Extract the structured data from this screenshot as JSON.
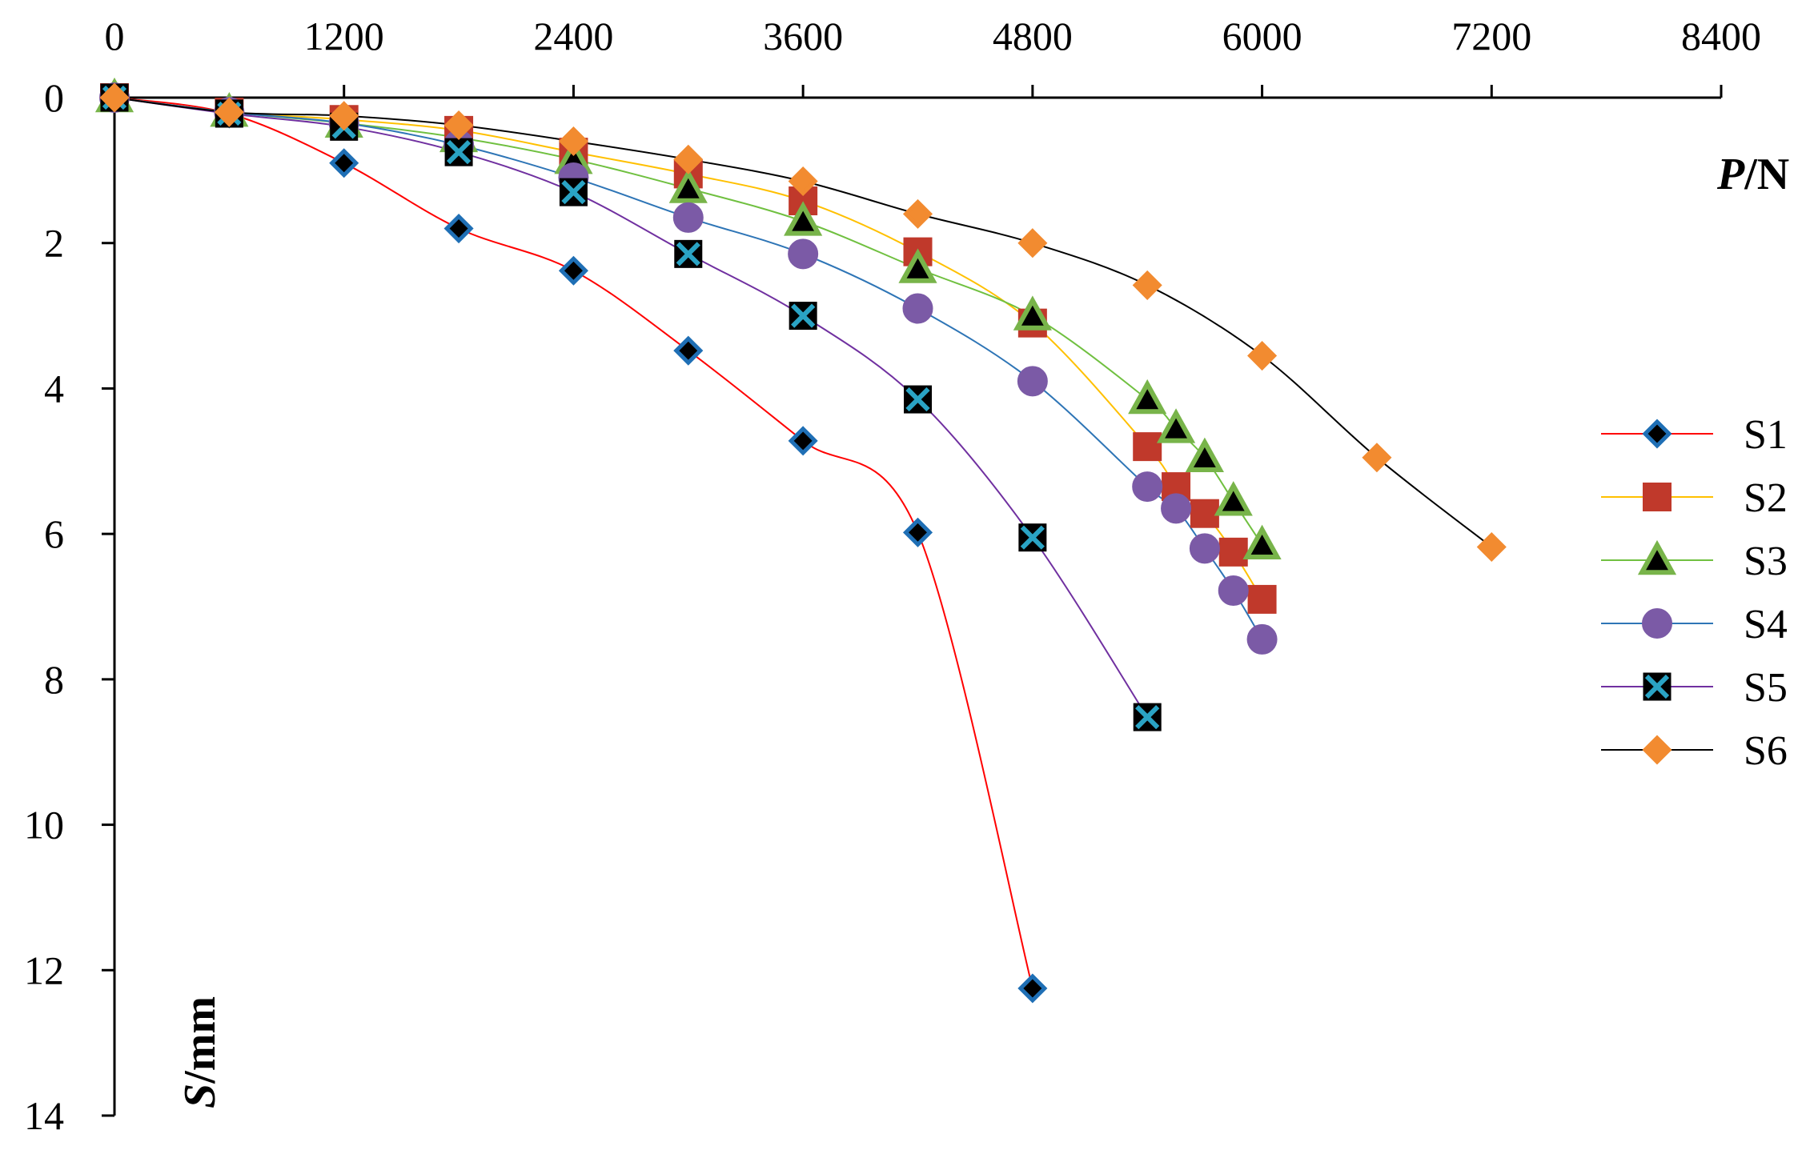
{
  "chart_data": {
    "type": "line",
    "title": "",
    "xlabel": {
      "italic": "P",
      "rest": "/N"
    },
    "ylabel": {
      "italic": "S",
      "rest": "/mm"
    },
    "xlim": [
      0,
      8400
    ],
    "ylim": [
      0,
      14
    ],
    "y_inverted": true,
    "x_axis_position": "top",
    "xticks": [
      0,
      1200,
      2400,
      3600,
      4800,
      6000,
      7200,
      8400
    ],
    "yticks": [
      0,
      2,
      4,
      6,
      8,
      10,
      12,
      14
    ],
    "grid": false,
    "legend_position": "right",
    "series": [
      {
        "name": "S1",
        "line_color": "#ff0000",
        "marker": "diamond",
        "marker_fill": "#000000",
        "marker_stroke": "#1f6fb5",
        "points": [
          [
            0,
            0
          ],
          [
            600,
            0.22
          ],
          [
            1200,
            0.9
          ],
          [
            1800,
            1.8
          ],
          [
            2400,
            2.38
          ],
          [
            3000,
            3.48
          ],
          [
            3600,
            4.72
          ],
          [
            4200,
            5.98
          ],
          [
            4800,
            12.25
          ]
        ]
      },
      {
        "name": "S2",
        "line_color": "#ffc000",
        "marker": "square",
        "marker_fill": "#c0392b",
        "marker_stroke": "#c0392b",
        "points": [
          [
            0,
            0
          ],
          [
            600,
            0.2
          ],
          [
            1200,
            0.3
          ],
          [
            1800,
            0.45
          ],
          [
            2400,
            0.75
          ],
          [
            3000,
            1.05
          ],
          [
            3600,
            1.42
          ],
          [
            4200,
            2.12
          ],
          [
            4800,
            3.1
          ],
          [
            5400,
            4.8
          ],
          [
            5550,
            5.35
          ],
          [
            5700,
            5.72
          ],
          [
            5850,
            6.25
          ],
          [
            6000,
            6.9
          ]
        ]
      },
      {
        "name": "S3",
        "line_color": "#70c040",
        "marker": "triangle",
        "marker_fill": "#000000",
        "marker_stroke": "#78b44a",
        "points": [
          [
            0,
            0
          ],
          [
            600,
            0.2
          ],
          [
            1200,
            0.35
          ],
          [
            1800,
            0.55
          ],
          [
            2400,
            0.85
          ],
          [
            3000,
            1.25
          ],
          [
            3600,
            1.7
          ],
          [
            4200,
            2.35
          ],
          [
            4800,
            3.0
          ],
          [
            5400,
            4.15
          ],
          [
            5550,
            4.55
          ],
          [
            5700,
            4.95
          ],
          [
            5850,
            5.55
          ],
          [
            6000,
            6.15
          ]
        ]
      },
      {
        "name": "S4",
        "line_color": "#2e75b6",
        "marker": "circle",
        "marker_fill": "#7b5aa6",
        "marker_stroke": "#7b5aa6",
        "points": [
          [
            0,
            0
          ],
          [
            600,
            0.2
          ],
          [
            1200,
            0.35
          ],
          [
            1800,
            0.65
          ],
          [
            2400,
            1.1
          ],
          [
            3000,
            1.65
          ],
          [
            3600,
            2.15
          ],
          [
            4200,
            2.9
          ],
          [
            4800,
            3.9
          ],
          [
            5400,
            5.35
          ],
          [
            5550,
            5.65
          ],
          [
            5700,
            6.2
          ],
          [
            5850,
            6.78
          ],
          [
            6000,
            7.45
          ]
        ]
      },
      {
        "name": "S5",
        "line_color": "#7030a0",
        "marker": "x-square",
        "marker_fill": "#000000",
        "marker_stroke": "#2aa3c4",
        "points": [
          [
            0,
            0
          ],
          [
            600,
            0.22
          ],
          [
            1200,
            0.4
          ],
          [
            1800,
            0.75
          ],
          [
            2400,
            1.3
          ],
          [
            3000,
            2.15
          ],
          [
            3600,
            3.0
          ],
          [
            4200,
            4.15
          ],
          [
            4800,
            6.05
          ],
          [
            5400,
            8.52
          ]
        ]
      },
      {
        "name": "S6",
        "line_color": "#000000",
        "marker": "diamond",
        "marker_fill": "#f28b30",
        "marker_stroke": "#f28b30",
        "points": [
          [
            0,
            0
          ],
          [
            600,
            0.2
          ],
          [
            1200,
            0.25
          ],
          [
            1800,
            0.38
          ],
          [
            2400,
            0.6
          ],
          [
            3000,
            0.85
          ],
          [
            3600,
            1.15
          ],
          [
            4200,
            1.6
          ],
          [
            4800,
            2.0
          ],
          [
            5400,
            2.58
          ],
          [
            6000,
            3.55
          ],
          [
            6600,
            4.95
          ],
          [
            7200,
            6.18
          ]
        ]
      }
    ]
  }
}
